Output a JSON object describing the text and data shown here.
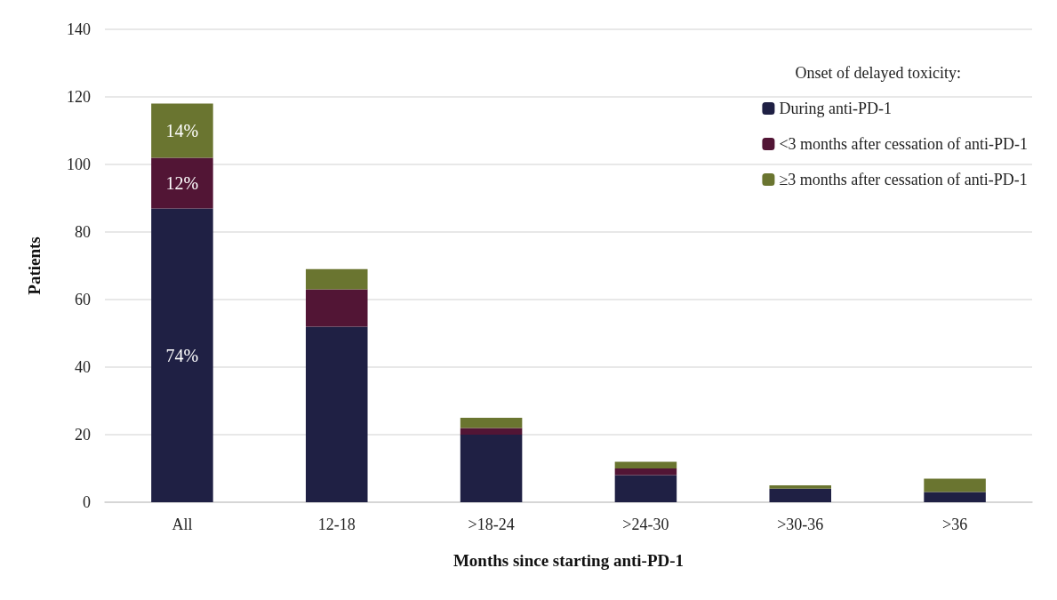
{
  "chart_data": {
    "type": "bar",
    "stacked": true,
    "xlabel": "Months since starting anti-PD-1",
    "ylabel": "Patients",
    "legend_title": "Onset of delayed toxicity:",
    "legend": "top right",
    "grid": "y",
    "categories": [
      "All",
      "12-18",
      ">18-24",
      ">24-30",
      ">30-36",
      ">36"
    ],
    "annotations": [
      "74%",
      "12%",
      "14%"
    ],
    "ylim": [
      0,
      140
    ],
    "yticks": [
      0,
      20,
      40,
      60,
      80,
      100,
      120,
      140
    ],
    "series": [
      {
        "name": "During anti-PD-1",
        "color": "#1f2044",
        "values": [
          87,
          52,
          20,
          8,
          4,
          3
        ]
      },
      {
        "name": "<3 months after cessation of anti-PD-1",
        "color": "#521535",
        "values": [
          15,
          11,
          2,
          2,
          0,
          0
        ]
      },
      {
        "name": "≥3 months after cessation of anti-PD-1",
        "color": "#6a7530",
        "values": [
          16,
          6,
          3,
          2,
          1,
          4
        ]
      }
    ]
  }
}
